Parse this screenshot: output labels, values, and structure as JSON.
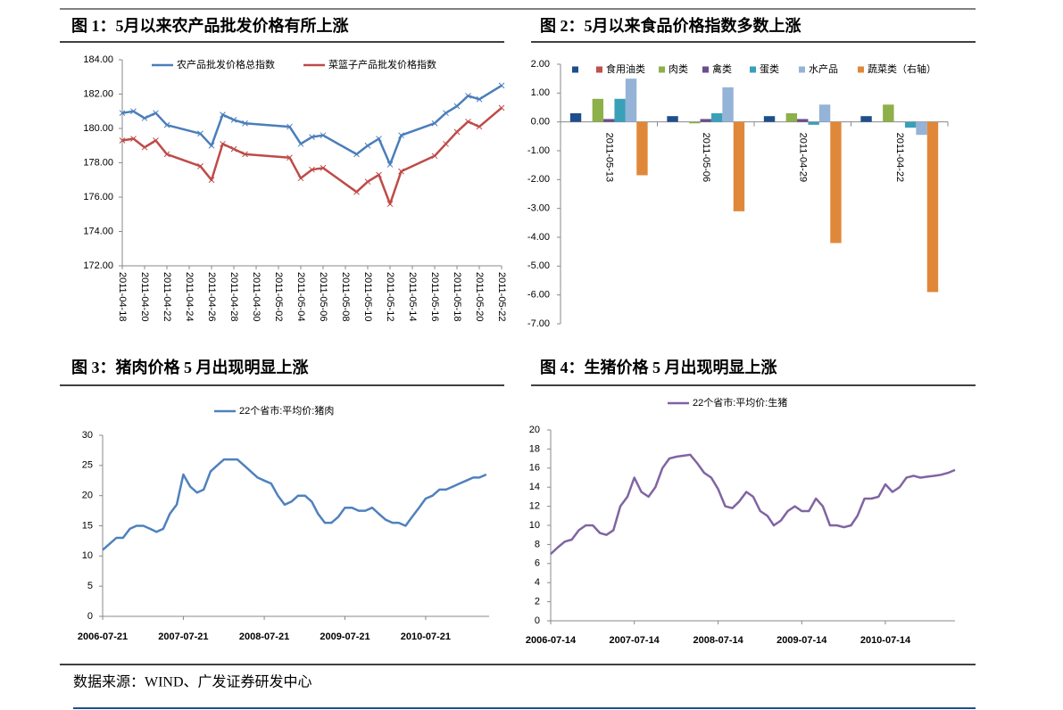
{
  "chart_data": [
    {
      "type": "line",
      "title": "图 1：5月以来农产品批发价格有所上涨",
      "markers": "x",
      "x": [
        "2011-04-18",
        "2011-04-19",
        "2011-04-20",
        "2011-04-21",
        "2011-04-22",
        "2011-04-25",
        "2011-04-26",
        "2011-04-27",
        "2011-04-28",
        "2011-04-29",
        "2011-05-03",
        "2011-05-04",
        "2011-05-05",
        "2011-05-06",
        "2011-05-09",
        "2011-05-10",
        "2011-05-11",
        "2011-05-12",
        "2011-05-13",
        "2011-05-16",
        "2011-05-17",
        "2011-05-18",
        "2011-05-19",
        "2011-05-20",
        "2011-05-22"
      ],
      "series": [
        {
          "name": "农产品批发价格总指数",
          "color": "#4a7ebb",
          "values": [
            180.9,
            181.0,
            180.6,
            180.9,
            180.2,
            179.7,
            179.0,
            180.8,
            180.5,
            180.3,
            180.1,
            179.1,
            179.5,
            179.6,
            178.5,
            179.0,
            179.4,
            177.9,
            179.6,
            180.3,
            180.9,
            181.3,
            181.9,
            181.7,
            182.5
          ]
        },
        {
          "name": "菜篮子产品批发价格指数",
          "color": "#be4b48",
          "values": [
            179.3,
            179.4,
            178.9,
            179.3,
            178.5,
            177.8,
            177.0,
            179.1,
            178.8,
            178.5,
            178.3,
            177.1,
            177.6,
            177.7,
            176.3,
            176.9,
            177.3,
            175.6,
            177.5,
            178.4,
            179.1,
            179.8,
            180.4,
            180.1,
            181.2
          ]
        }
      ],
      "xlim": [
        "2011-04-18",
        "2011-05-22"
      ],
      "xticks": [
        "2011-04-18",
        "2011-04-20",
        "2011-04-22",
        "2011-04-24",
        "2011-04-26",
        "2011-04-28",
        "2011-04-30",
        "2011-05-02",
        "2011-05-04",
        "2011-05-06",
        "2011-05-08",
        "2011-05-10",
        "2011-05-12",
        "2011-05-14",
        "2011-05-16",
        "2011-05-18",
        "2011-05-20",
        "2011-05-22"
      ],
      "ylim": [
        172,
        184
      ],
      "yticks": [
        {
          "value": 172,
          "label": "172.00"
        },
        {
          "value": 174,
          "label": "174.00"
        },
        {
          "value": 176,
          "label": "176.00"
        },
        {
          "value": 178,
          "label": "178.00"
        },
        {
          "value": 180,
          "label": "180.00"
        },
        {
          "value": 182,
          "label": "182.00"
        },
        {
          "value": 184,
          "label": "184.00"
        }
      ]
    },
    {
      "type": "bar",
      "title": "图 2：5月以来食品价格指数多数上涨",
      "categories": [
        "2011-05-13",
        "2011-05-06",
        "2011-04-29",
        "2011-04-22"
      ],
      "series": [
        {
          "name": null,
          "color": "#1f4e8c",
          "values": [
            0.3,
            0.2,
            0.2,
            0.2
          ]
        },
        {
          "name": "食用油类",
          "color": "#c0504d",
          "values": [
            0,
            0,
            0,
            0
          ]
        },
        {
          "name": "肉类",
          "color": "#8db04a",
          "values": [
            0.8,
            -0.05,
            0.3,
            0.6
          ]
        },
        {
          "name": "禽类",
          "color": "#6b4e8c",
          "values": [
            0.1,
            0.1,
            0.1,
            0.0
          ]
        },
        {
          "name": "蛋类",
          "color": "#3aa0b8",
          "values": [
            0.8,
            0.3,
            -0.1,
            -0.2
          ]
        },
        {
          "name": "水产品",
          "color": "#95b3d7",
          "values": [
            1.5,
            1.2,
            0.6,
            -0.45
          ]
        },
        {
          "name": "蔬菜类（右轴）",
          "color": "#e0883a",
          "values": [
            -1.85,
            -3.1,
            -4.2,
            -5.9
          ]
        }
      ],
      "ylim": [
        -7,
        2
      ],
      "yticks": [
        {
          "value": 2,
          "label": "2.00"
        },
        {
          "value": 1,
          "label": "1.00"
        },
        {
          "value": 0,
          "label": "0.00"
        },
        {
          "value": -1,
          "label": "-1.00"
        },
        {
          "value": -2,
          "label": "-2.00"
        },
        {
          "value": -3,
          "label": "-3.00"
        },
        {
          "value": -4,
          "label": "-4.00"
        },
        {
          "value": -5,
          "label": "-5.00"
        },
        {
          "value": -6,
          "label": "-6.00"
        },
        {
          "value": -7,
          "label": "-7.00"
        }
      ]
    },
    {
      "type": "line",
      "title": "图 3：猪肉价格 5 月出现明显上涨",
      "x": [
        "2006-07-21",
        "2006-08-21",
        "2006-09-21",
        "2006-10-21",
        "2006-11-21",
        "2006-12-21",
        "2007-01-21",
        "2007-02-21",
        "2007-03-21",
        "2007-04-21",
        "2007-05-21",
        "2007-06-21",
        "2007-07-21",
        "2007-08-21",
        "2007-09-21",
        "2007-10-21",
        "2007-11-21",
        "2007-12-21",
        "2008-01-21",
        "2008-02-21",
        "2008-03-21",
        "2008-04-21",
        "2008-05-21",
        "2008-06-21",
        "2008-07-21",
        "2008-08-21",
        "2008-09-21",
        "2008-10-21",
        "2008-11-21",
        "2008-12-21",
        "2009-01-21",
        "2009-02-21",
        "2009-03-21",
        "2009-04-21",
        "2009-05-21",
        "2009-06-21",
        "2009-07-21",
        "2009-08-21",
        "2009-09-21",
        "2009-10-21",
        "2009-11-21",
        "2009-12-21",
        "2010-01-21",
        "2010-02-21",
        "2010-03-21",
        "2010-04-21",
        "2010-05-21",
        "2010-06-21",
        "2010-07-21",
        "2010-08-21",
        "2010-09-21",
        "2010-10-21",
        "2010-11-21",
        "2010-12-21",
        "2011-01-21",
        "2011-02-21",
        "2011-03-21",
        "2011-04-21"
      ],
      "series": [
        {
          "name": "22个省市:平均价:猪肉",
          "color": "#4f81bd",
          "values": [
            11,
            12,
            13,
            13,
            14.5,
            15,
            15,
            14.5,
            14,
            14.5,
            17,
            18.5,
            23.5,
            21.5,
            20.5,
            21,
            24,
            25,
            26,
            26,
            26,
            25,
            24,
            23,
            22.5,
            22,
            20,
            18.5,
            19,
            20,
            20,
            19,
            17,
            15.5,
            15.5,
            16.5,
            18,
            18,
            17.5,
            17.5,
            18,
            17,
            16,
            15.5,
            15.5,
            15,
            16.5,
            18,
            19.5,
            20,
            21,
            21,
            21.5,
            22,
            22.5,
            23,
            23,
            23.5
          ]
        }
      ],
      "xlim": [
        "2006-07-21",
        "2011-05-04"
      ],
      "xticks": [
        "2006-07-21",
        "2007-07-21",
        "2008-07-21",
        "2009-07-21",
        "2010-07-21"
      ],
      "ylim": [
        0,
        30
      ],
      "yticks": [
        0,
        5,
        10,
        15,
        20,
        25,
        30
      ]
    },
    {
      "type": "line",
      "title": "图 4：生猪价格 5 月出现明显上涨",
      "x": [
        "2006-07-14",
        "2006-08-14",
        "2006-09-14",
        "2006-10-14",
        "2006-11-14",
        "2006-12-14",
        "2007-01-14",
        "2007-02-14",
        "2007-03-14",
        "2007-04-14",
        "2007-05-14",
        "2007-06-14",
        "2007-07-14",
        "2007-08-14",
        "2007-09-14",
        "2007-10-14",
        "2007-11-14",
        "2007-12-14",
        "2008-01-14",
        "2008-02-14",
        "2008-03-14",
        "2008-04-14",
        "2008-05-14",
        "2008-06-14",
        "2008-07-14",
        "2008-08-14",
        "2008-09-14",
        "2008-10-14",
        "2008-11-14",
        "2008-12-14",
        "2009-01-14",
        "2009-02-14",
        "2009-03-14",
        "2009-04-14",
        "2009-05-14",
        "2009-06-14",
        "2009-07-14",
        "2009-08-14",
        "2009-09-14",
        "2009-10-14",
        "2009-11-14",
        "2009-12-14",
        "2010-01-14",
        "2010-02-14",
        "2010-03-14",
        "2010-04-14",
        "2010-05-14",
        "2010-06-14",
        "2010-07-14",
        "2010-08-14",
        "2010-09-14",
        "2010-10-14",
        "2010-11-14",
        "2010-12-14",
        "2011-01-14",
        "2011-02-14",
        "2011-03-14",
        "2011-04-14",
        "2011-05-14"
      ],
      "series": [
        {
          "name": "22个省市:平均价:生猪",
          "color": "#8064a2",
          "values": [
            7,
            7.7,
            8.3,
            8.5,
            9.5,
            10,
            10,
            9.2,
            9,
            9.5,
            12,
            13,
            15,
            13.5,
            13,
            14,
            16,
            17,
            17.2,
            17.3,
            17.4,
            16.5,
            15.5,
            15,
            13.8,
            12,
            11.8,
            12.5,
            13.5,
            13,
            11.5,
            11,
            10,
            10.5,
            11.5,
            12,
            11.5,
            11.5,
            12.8,
            12,
            10,
            10,
            9.8,
            10,
            11,
            12.8,
            12.8,
            13,
            14.3,
            13.5,
            14,
            15,
            15.2,
            15,
            15.1,
            15.2,
            15.3,
            15.5,
            15.8
          ]
        }
      ],
      "xlim": [
        "2006-07-14",
        "2011-05-14"
      ],
      "xticks": [
        "2006-07-14",
        "2007-07-14",
        "2008-07-14",
        "2009-07-14",
        "2010-07-14"
      ],
      "ylim": [
        0,
        20
      ],
      "yticks": [
        0,
        2,
        4,
        6,
        8,
        10,
        12,
        14,
        16,
        18,
        20
      ]
    }
  ],
  "source": "数据来源：WIND、广发证券研发中心"
}
